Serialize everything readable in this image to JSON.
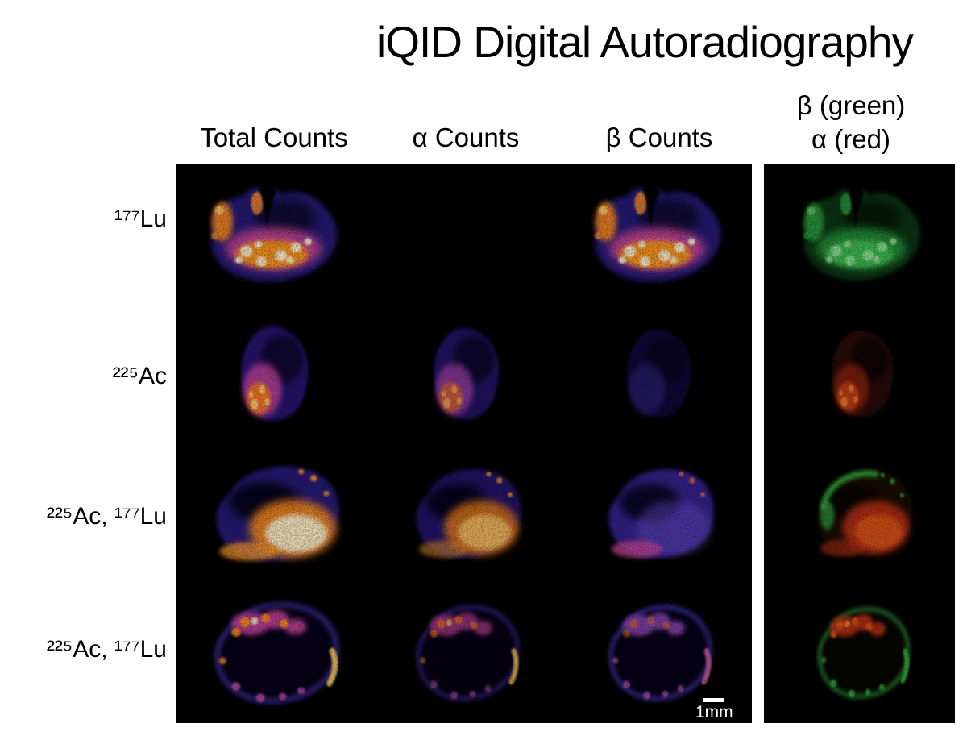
{
  "title": "iQID Digital Autoradiography",
  "column_headers": {
    "total": "Total Counts",
    "alpha": "α Counts",
    "beta": "β Counts",
    "composite_line1": "β (green)",
    "composite_line2": "α (red)"
  },
  "rows": [
    {
      "label": "¹⁷⁷Lu",
      "cells": [
        {
          "column": "Total Counts",
          "variant": "fire-bright",
          "description": "tissue section with intense orange-yellow band across lower half"
        },
        {
          "column": "α Counts",
          "variant": "empty",
          "description": "no alpha signal, black"
        },
        {
          "column": "β Counts",
          "variant": "fire-bright",
          "description": "beta image matching total counts"
        },
        {
          "column": "Composite",
          "variant": "beta-green",
          "description": "beta signal rendered in green"
        }
      ]
    },
    {
      "label": "²²⁵Ac",
      "cells": [
        {
          "column": "Total Counts",
          "variant": "fire-bright",
          "description": "half-moon section with hot spot at lower left"
        },
        {
          "column": "α Counts",
          "variant": "fire-medium",
          "description": "alpha signal, slightly dimmer"
        },
        {
          "column": "β Counts",
          "variant": "purple-faint",
          "description": "very weak beta signal"
        },
        {
          "column": "Composite",
          "variant": "alpha-red",
          "description": "alpha signal rendered in red"
        }
      ]
    },
    {
      "label": "²²⁵Ac, ¹⁷⁷Lu",
      "cells": [
        {
          "column": "Total Counts",
          "variant": "fire-saturated",
          "description": "oval section, white-hot lower-right region"
        },
        {
          "column": "α Counts",
          "variant": "fire-medium",
          "description": "orange lower region, dark center"
        },
        {
          "column": "β Counts",
          "variant": "purple-rim",
          "description": "purple body with magenta rim"
        },
        {
          "column": "Composite",
          "variant": "green-red",
          "description": "green upper-left rim with red right side"
        }
      ]
    },
    {
      "label": "²²⁵Ac, ¹⁷⁷Lu",
      "cells": [
        {
          "column": "Total Counts",
          "variant": "ring-bright",
          "description": "ring-shaped section with hot cluster on top and bright right streak"
        },
        {
          "column": "α Counts",
          "variant": "ring-medium",
          "description": "dimmer ring"
        },
        {
          "column": "β Counts",
          "variant": "ring-purple",
          "description": "purple ring outline"
        },
        {
          "column": "Composite",
          "variant": "ring-green-red",
          "description": "red top cluster with green ring"
        }
      ]
    }
  ],
  "scale_bar_label": "1mm",
  "palette": {
    "page_background": "#ffffff",
    "panel_background": "#000000",
    "text": "#000000",
    "fire_base_purple": "#2b1a80",
    "fire_magenta": "#c844a0",
    "fire_orange": "#ff8c1a",
    "fire_peak": "#fff3cf",
    "beta_green": "#2fa53f",
    "alpha_red": "#c03014",
    "scale_bar": "#ffffff"
  }
}
